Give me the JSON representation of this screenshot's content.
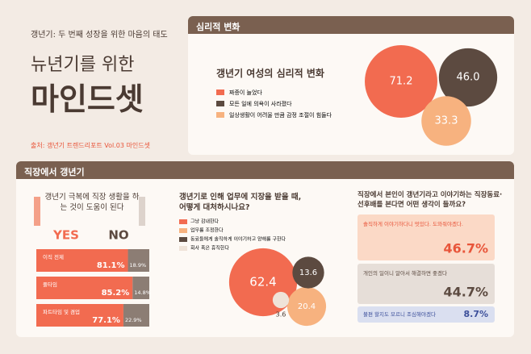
{
  "header": {
    "kicker": "갱년기: 두 번째 성장을 위한 마음의 태도",
    "title_line1": "뉴년기를 위한",
    "title_line2": "마인드셋",
    "source": "출처: 갱년기 트렌드리포트 Vol.03 마인드셋"
  },
  "psych": {
    "section_title": "심리적 변화",
    "chart_title": "갱년기 여성의 심리적 변화",
    "items": [
      {
        "label": "짜증이 늘었다",
        "color": "#f26b50",
        "value": 71.2
      },
      {
        "label": "모든 일에 의욕이 사라졌다",
        "color": "#5c4a40",
        "value": 46.0,
        "value_label": "46.0"
      },
      {
        "label": "일상생활이 어려울 만큼 감정 조절이 힘들다",
        "color": "#f7b27f",
        "value": 33.3
      }
    ]
  },
  "work": {
    "section_title": "직장에서 갱년기",
    "help": {
      "question": "갱년기 극복에 직장 생활을 하는 것이 도움이 된다",
      "yes": "YES",
      "no": "NO",
      "rows": [
        {
          "label": "이직 전제",
          "yes": 81.1,
          "yes_label": "81.1%",
          "no": 18.9,
          "no_label": "18.9%"
        },
        {
          "label": "풀타임",
          "yes": 85.2,
          "yes_label": "85.2%",
          "no": 14.8,
          "no_label": "14.8%"
        },
        {
          "label": "파트타임 및 겸업",
          "yes": 77.1,
          "yes_label": "77.1%",
          "no": 22.9,
          "no_label": "22.9%"
        }
      ]
    },
    "coping": {
      "question": "갱년기로 인해 업무에 지장을 받을 때, 어떻게 대처하시나요?",
      "items": [
        {
          "label": "그냥 감내한다",
          "color": "#f26b50",
          "value": 62.4
        },
        {
          "label": "업무를 조정한다",
          "color": "#f7b27f",
          "value": 20.4
        },
        {
          "label": "동료들에게 솔직하게 이야기하고 양해를 구한다",
          "color": "#5c4a40",
          "value": 13.6
        },
        {
          "label": "회사 혹은 휴직한다",
          "color": "#efe3d8",
          "value": 3.6
        }
      ]
    },
    "opinion": {
      "question": "직장에서 본인이 갱년기라고 이야기하는 직장동료·선후배를 본다면 어떤 생각이 들까요?",
      "items": [
        {
          "label": "솔직하게 이야기하다니 멋있다. 도와줘야겠다.",
          "value": 46.7,
          "value_label": "46.7%",
          "color": "#fbd9c6",
          "text_color": "#e8553a"
        },
        {
          "label": "개인의 일이니 알아서 해결하면 좋겠다",
          "value": 44.7,
          "value_label": "44.7%",
          "color": "#e6ded8",
          "text_color": "#5c4a40"
        },
        {
          "label": "불편 할지도 모르니 조심해야겠다",
          "value": 8.7,
          "value_label": "8.7%",
          "color": "#dadff0",
          "text_color": "#3c4f9a"
        }
      ]
    }
  }
}
